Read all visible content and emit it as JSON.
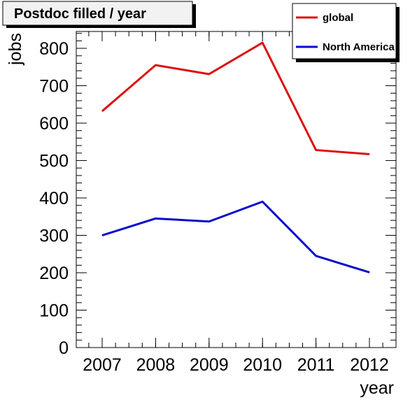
{
  "chart_data": {
    "type": "line",
    "title": "Postdoc filled / year",
    "xlabel": "year",
    "ylabel": "jobs",
    "categories": [
      "2007",
      "2008",
      "2009",
      "2010",
      "2011",
      "2012"
    ],
    "ylim": [
      0,
      845
    ],
    "yticks": [
      "0",
      "100",
      "200",
      "300",
      "400",
      "500",
      "600",
      "700",
      "800"
    ],
    "grid": false,
    "legend_position": "top-right",
    "series": [
      {
        "name": "global",
        "color": "#dd1111",
        "values": [
          632,
          755,
          731,
          815,
          528,
          517
        ]
      },
      {
        "name": "North America",
        "color": "#0a0acc",
        "values": [
          300,
          345,
          337,
          390,
          245,
          201
        ]
      }
    ]
  }
}
